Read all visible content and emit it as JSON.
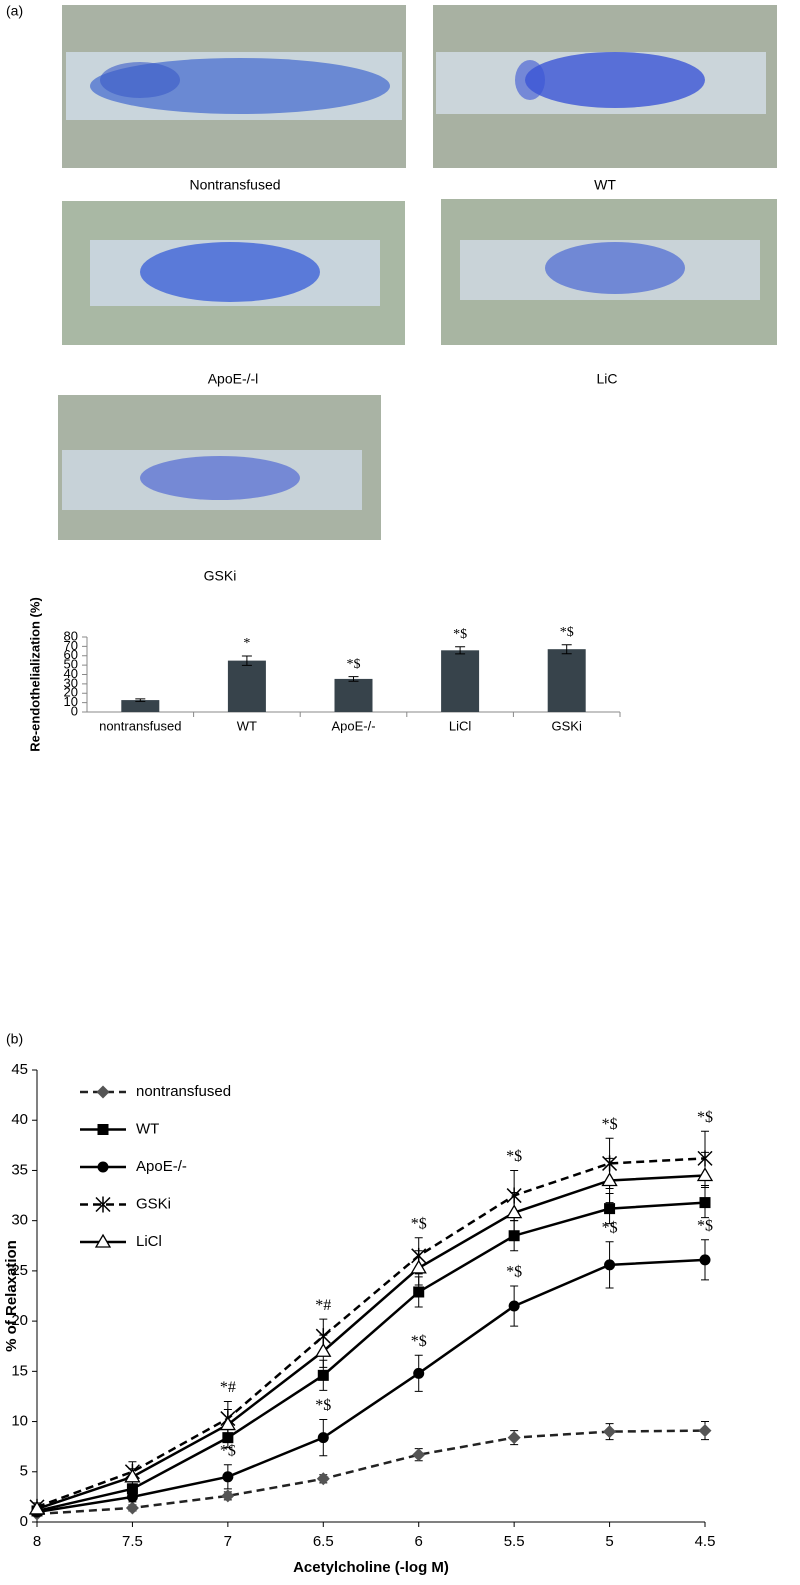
{
  "figure": {
    "panel_labels": [
      "(a)",
      "(b)"
    ],
    "photo_captions": [
      "Nontransfused",
      "WT",
      "ApoE-/-l",
      "LiC",
      "GSKi"
    ]
  },
  "chart_data": [
    {
      "type": "bar",
      "y_label": "Re-endothelialization (%)",
      "categories": [
        "nontransfused",
        "WT",
        "ApoE-/-",
        "LiCl",
        "GSKi"
      ],
      "values": [
        12.7,
        54.8,
        35.3,
        65.8,
        67.0
      ],
      "errors": [
        1.3,
        5.0,
        2.5,
        3.8,
        4.8
      ],
      "value_annotations": [
        null,
        "*",
        "*$",
        "*$",
        "*$"
      ],
      "color": "#37434b",
      "ylim": [
        0,
        80
      ],
      "yticks": [
        0,
        10,
        20,
        30,
        40,
        50,
        60,
        70,
        80
      ],
      "grid": false
    },
    {
      "type": "line",
      "x_label": "Acetylcholine (-log M)",
      "y_label": "% of Relaxation",
      "x": [
        8,
        7.5,
        7,
        6.5,
        6,
        5.5,
        5,
        4.5
      ],
      "xlim": [
        8,
        4.5
      ],
      "xticks": [
        8,
        7.5,
        7,
        6.5,
        6,
        5.5,
        5,
        4.5
      ],
      "ylim": [
        0,
        45
      ],
      "yticks": [
        0,
        5,
        10,
        15,
        20,
        25,
        30,
        35,
        40,
        45
      ],
      "grid": false,
      "legend": "upper left",
      "series": [
        {
          "name": "nontransfused",
          "color": "#222222",
          "marker_color": "#555555",
          "marker": "diamond",
          "dashed": true,
          "values": [
            0.8,
            1.4,
            2.6,
            4.3,
            6.7,
            8.4,
            9.0,
            9.1
          ],
          "errors": [
            0.2,
            0.3,
            0.4,
            0.4,
            0.6,
            0.7,
            0.8,
            0.9
          ]
        },
        {
          "name": "WT",
          "color": "#000000",
          "marker_color": "#000000",
          "marker": "square",
          "dashed": false,
          "values": [
            1.1,
            3.3,
            8.4,
            14.6,
            22.9,
            28.5,
            31.2,
            31.8
          ],
          "errors": [
            0.3,
            0.5,
            1.0,
            1.5,
            1.5,
            1.5,
            1.5,
            1.5
          ]
        },
        {
          "name": "ApoE-/-",
          "color": "#000000",
          "marker_color": "#000000",
          "marker": "circle",
          "dashed": false,
          "values": [
            1.0,
            2.5,
            4.5,
            8.4,
            14.8,
            21.5,
            25.6,
            26.1
          ],
          "errors": [
            0.3,
            0.5,
            1.2,
            1.8,
            1.8,
            2.0,
            2.3,
            2.0
          ],
          "point_labels": [
            null,
            null,
            "*$",
            "*$",
            "*$",
            "*$",
            "*$",
            "*$"
          ]
        },
        {
          "name": "GSKi",
          "color": "#000000",
          "marker_color": "#000000",
          "marker": "asterisk",
          "dashed": true,
          "values": [
            1.5,
            5.0,
            10.3,
            18.5,
            26.5,
            32.5,
            35.7,
            36.2
          ],
          "errors": [
            0.4,
            1.0,
            1.7,
            1.7,
            1.8,
            2.5,
            2.5,
            2.7
          ],
          "point_labels": [
            null,
            null,
            "*#",
            "*#",
            "*$",
            "*$",
            "*$",
            "*$"
          ]
        },
        {
          "name": "LiCl",
          "color": "#000000",
          "marker_color": "#000000",
          "marker": "triangle",
          "dashed": false,
          "values": [
            1.3,
            4.5,
            9.7,
            17.0,
            25.3,
            30.8,
            34.0,
            34.5
          ],
          "errors": [
            0.3,
            0.8,
            1.5,
            1.6,
            1.7,
            2.0,
            2.2,
            2.3
          ]
        }
      ]
    }
  ]
}
